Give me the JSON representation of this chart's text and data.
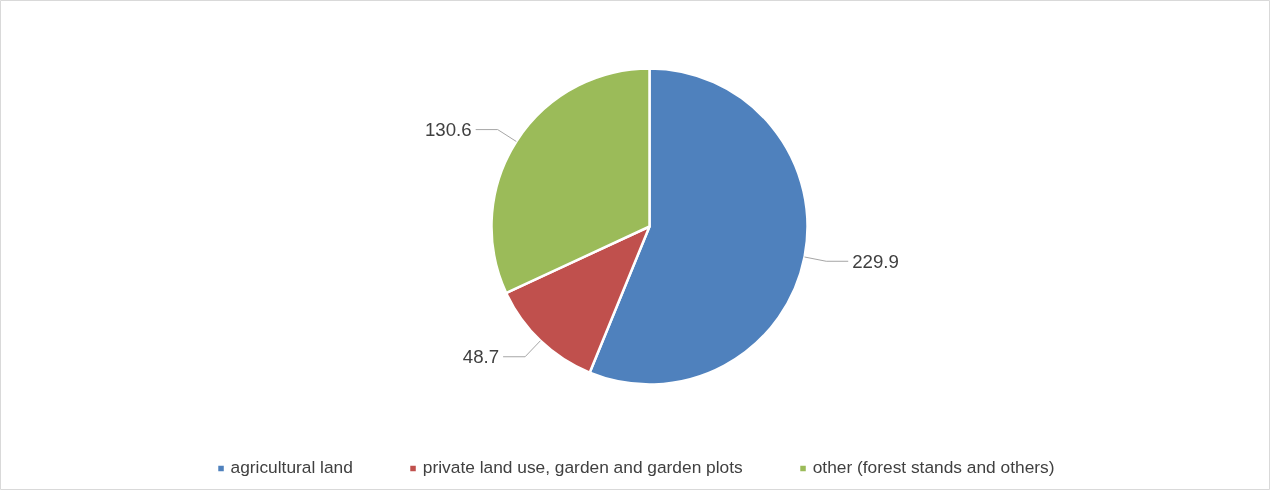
{
  "chart_data": {
    "type": "pie",
    "categories": [
      "agricultural land",
      "private land use, garden and garden plots",
      "other (forest stands and others)"
    ],
    "values": [
      229.9,
      48.7,
      130.6
    ],
    "colors": [
      "#4f81bd",
      "#c0504d",
      "#9bbb59"
    ],
    "data_labels": true,
    "legend": "bottom"
  }
}
